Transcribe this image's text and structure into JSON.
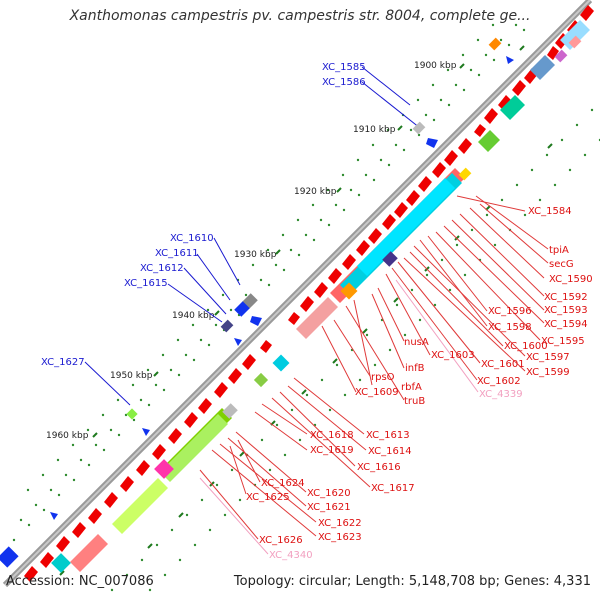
{
  "title": "Xanthomonas campestris pv. campestris str. 8004, complete ge...",
  "footer": {
    "accession": "Accession: NC_007086",
    "topology": "Topology: circular; Length: 5,148,708 bp; Genes: 4,331"
  },
  "ruler": [
    "1900 kbp",
    "1910 kbp",
    "1920 kbp",
    "1930 kbp",
    "1940 kbp",
    "1950 kbp",
    "1960 kbp"
  ],
  "outer_labels": [
    "XC_1585",
    "XC_1586",
    "XC_1610",
    "XC_1611",
    "XC_1612",
    "XC_1615",
    "XC_1627"
  ],
  "inner_labels_right": [
    "XC_1584",
    "tpiA",
    "secG",
    "XC_1590",
    "XC_1592",
    "XC_1593",
    "XC_1594",
    "XC_1595",
    "XC_1596",
    "XC_1598",
    "XC_1597",
    "XC_1600",
    "XC_1599",
    "XC_1601",
    "XC_1602",
    "XC_1603",
    "nusA",
    "infB",
    "rbfA",
    "truB",
    "rpsO",
    "XC_1609",
    "XC_4339"
  ],
  "inner_labels_left": [
    "XC_1613",
    "XC_1614",
    "XC_1616",
    "XC_1617",
    "XC_1618",
    "XC_1619",
    "XC_1620",
    "XC_1621",
    "XC_1622",
    "XC_1623",
    "XC_1624",
    "XC_1625",
    "XC_1626",
    "XC_4340"
  ],
  "colors": {
    "backbone": "#9a9a9a",
    "gene_forward": "#ee0000",
    "label_outer": "#1a1ad0",
    "label_inner": "#dd1111",
    "label_pseudo": "#f2a0c0",
    "ruler_tick": "#1f7a1f"
  }
}
